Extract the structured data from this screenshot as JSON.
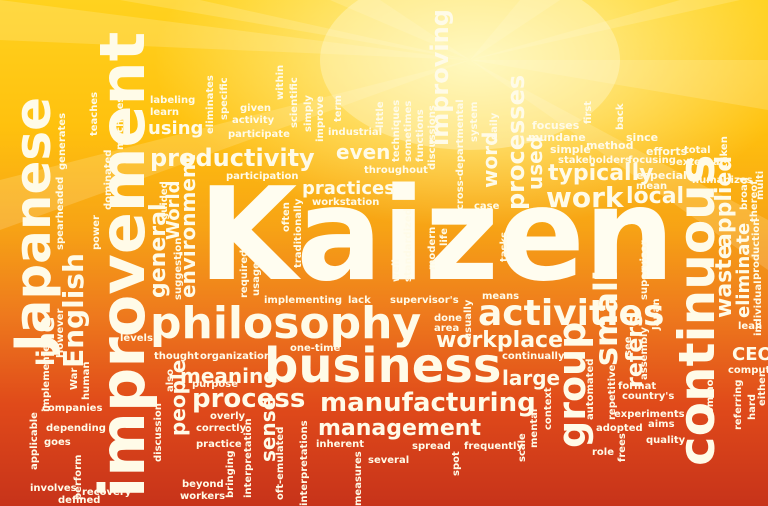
{
  "headline": "Kaizen",
  "large_words": {
    "improvement": "improvement",
    "japanese": "Japanese",
    "continuous": "continuous",
    "philosophy": "philosophy",
    "business": "business",
    "activities": "activities",
    "productivity": "productivity",
    "process": "process",
    "manufacturing": "manufacturing",
    "management": "management",
    "workplace": "workplace",
    "group": "group",
    "small": "small",
    "work": "work",
    "typically": "typically",
    "processes": "processes",
    "english": "English",
    "practices": "practices",
    "even": "even",
    "using": "using",
    "meaning": "meaning",
    "large": "large",
    "local": "local",
    "word": "word",
    "used": "used",
    "refers": "refers",
    "waste": "waste",
    "applied": "applied",
    "eliminate": "eliminate",
    "people": "people",
    "sense": "sense",
    "line": "line",
    "improving": "improving",
    "general": "general",
    "environment": "environment",
    "world": "World",
    "ceo": "CEO"
  },
  "small_words": {
    "labeling": "labeling",
    "learn": "learn",
    "given": "given",
    "within": "within",
    "scientific": "scientific",
    "participate": "participate",
    "industrial": "industrial",
    "term": "term",
    "little": "little",
    "techniques": "techniques",
    "functions": "functions",
    "discussions": "discussions",
    "sometimes": "sometimes",
    "focuses": "focuses",
    "first": "first",
    "back": "back",
    "since": "since",
    "mundane": "mundane",
    "simple": "simple",
    "method": "method",
    "efforts": "efforts",
    "total": "total",
    "stakeholders": "stakeholders",
    "focusing": "focusing",
    "external": "external",
    "especially": "especially",
    "mean": "mean",
    "humanizes": "humanizes",
    "taken": "taken",
    "participation": "participation",
    "throughout": "throughout",
    "workstation": "workstation",
    "cross_departmental": "cross-departmental",
    "system": "system",
    "daily": "daily",
    "case": "case",
    "guided": "guided",
    "suggestion": "suggestion",
    "often": "often",
    "traditionally": "traditionally",
    "well": "well",
    "standardized": "standardized",
    "modern": "modern",
    "life": "life",
    "tasks": "tasks",
    "supervisor": "supervisor",
    "broad": "broad",
    "thereof": "thereof",
    "production": "production",
    "individual": "individual",
    "multi": "multi",
    "required": "required",
    "usage": "usage",
    "implementing": "implementing",
    "lack": "lack",
    "supervisors": "supervisor's",
    "means": "means",
    "done": "done",
    "area": "area",
    "usually": "usually",
    "continually": "continually",
    "lean": "lean",
    "levels": "levels",
    "thought": "thought",
    "organization": "organization",
    "one_time": "one-time",
    "purpose": "purpose",
    "also": "also",
    "overly": "overly",
    "correctly": "correctly",
    "practice": "practice",
    "discussion": "discussion",
    "interpretation": "interpretation",
    "oft_emulated": "oft-emulated",
    "interpretations": "interpretations",
    "involves": "involves",
    "inherent": "inherent",
    "measures": "measures",
    "several": "several",
    "spread": "spread",
    "frequently": "frequently",
    "scale": "scale",
    "spot": "spot",
    "mental": "mental",
    "context": "context",
    "automated": "automated",
    "repetitive": "repetitive",
    "see": "see",
    "japan": "Japan",
    "format": "format",
    "assembly": "assembly",
    "countrys": "country's",
    "experiments": "experiments",
    "adopted": "adopted",
    "aims": "aims",
    "quality": "quality",
    "role": "role",
    "frees": "frees",
    "computing": "computing",
    "common": "common",
    "referring": "referring",
    "hard": "hard",
    "either": "either",
    "applicable": "applicable",
    "implemented": "implemented",
    "however": "However",
    "war": "War",
    "human": "human",
    "companies": "companies",
    "depending": "depending",
    "goes": "goes",
    "perform": "perform",
    "recovery": "recovery",
    "defined": "defined",
    "beyond": "beyond",
    "workers": "workers",
    "bringing": "bringing",
    "spearheaded": "spearheaded",
    "generates": "generates",
    "teaches": "teaches",
    "power": "power",
    "dominated": "dominated",
    "machines": "machines",
    "specific": "specific",
    "eliminates": "eliminates",
    "activity": "activity",
    "simply": "simply",
    "improve": "improve"
  },
  "colors": {
    "text": "#fffbe8",
    "top": "#ffd21f",
    "bottom": "#c7331a"
  }
}
